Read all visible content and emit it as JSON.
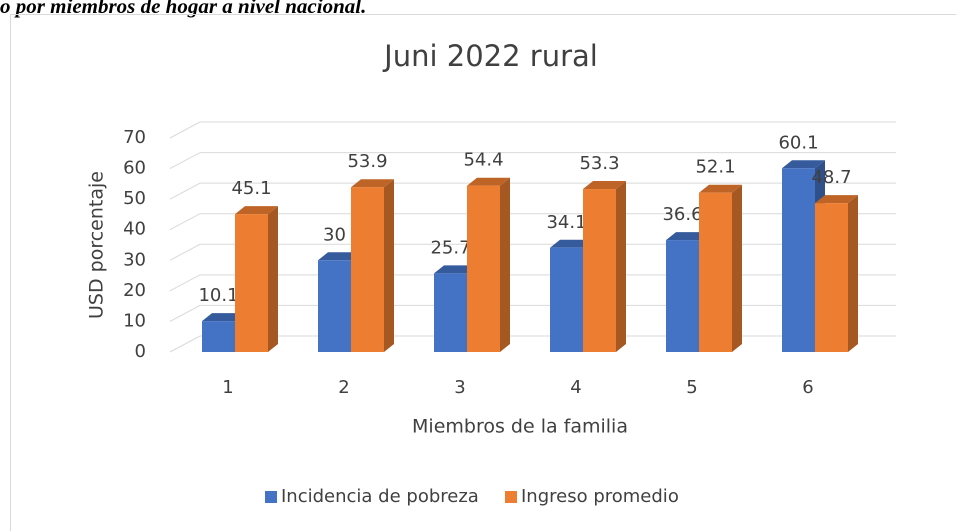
{
  "caption": "o por miembros de hogar a nivel nacional.",
  "chart_data": {
    "type": "bar3d",
    "title": "Juni 2022 rural",
    "x_label": "Miembros de la familia",
    "y_label": "USD porcentaje",
    "categories": [
      "1",
      "2",
      "3",
      "4",
      "5",
      "6"
    ],
    "series": [
      {
        "name": "Incidencia de pobreza",
        "color": "#4472c4",
        "values": [
          10.1,
          30,
          25.7,
          34.1,
          36.6,
          60.1
        ]
      },
      {
        "name": "Ingreso promedio",
        "color": "#ed7d31",
        "values": [
          45.1,
          53.9,
          54.4,
          53.3,
          52.1,
          48.7
        ]
      }
    ],
    "ylim": [
      0,
      70
    ],
    "yticks": [
      0,
      10,
      20,
      30,
      40,
      50,
      60,
      70
    ],
    "grid": true,
    "legend": "bottom"
  }
}
